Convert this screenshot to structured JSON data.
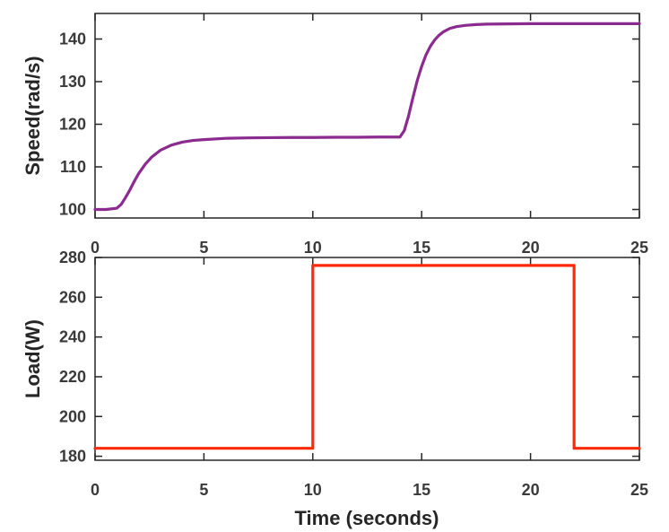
{
  "chart_data": [
    {
      "type": "line",
      "title": "",
      "xlabel": "",
      "ylabel": "Speed(rad/s)",
      "xlim": [
        0,
        25
      ],
      "ylim": [
        98,
        146
      ],
      "xticks": [
        0,
        5,
        10,
        15,
        20,
        25
      ],
      "xtick_labels": [
        "0",
        "5",
        "10",
        "15",
        "20",
        "25"
      ],
      "yticks": [
        100,
        110,
        120,
        130,
        140
      ],
      "ytick_labels": [
        "100",
        "110",
        "120",
        "130",
        "140"
      ],
      "grid": false,
      "legend": "none",
      "series": [
        {
          "color": "#8b2a8f",
          "x": [
            0,
            0.5,
            1.0,
            1.2,
            1.4,
            1.6,
            1.8,
            2.0,
            2.3,
            2.6,
            3.0,
            3.5,
            4.0,
            4.5,
            5.0,
            6.0,
            7.0,
            8.0,
            9.0,
            10.0,
            11.0,
            12.0,
            13.0,
            14.0,
            14.2,
            14.4,
            14.6,
            14.8,
            15.0,
            15.2,
            15.4,
            15.6,
            15.8,
            16.0,
            16.3,
            16.6,
            17.0,
            17.5,
            18.0,
            19.0,
            20.0,
            21.0,
            22.0,
            23.0,
            24.0,
            25.0
          ],
          "y": [
            100,
            100,
            100.3,
            101.2,
            102.8,
            104.6,
            106.6,
            108.4,
            110.6,
            112.3,
            113.9,
            115.1,
            115.8,
            116.2,
            116.4,
            116.7,
            116.8,
            116.85,
            116.9,
            116.9,
            116.95,
            116.95,
            117.0,
            117.0,
            118.5,
            122.0,
            126.3,
            130.3,
            133.6,
            136.3,
            138.3,
            139.8,
            140.9,
            141.7,
            142.5,
            142.9,
            143.2,
            143.4,
            143.5,
            143.55,
            143.6,
            143.6,
            143.6,
            143.6,
            143.6,
            143.6
          ]
        }
      ]
    },
    {
      "type": "line",
      "title": "",
      "xlabel": "Time (seconds)",
      "ylabel": "Load(W)",
      "xlim": [
        0,
        25
      ],
      "ylim": [
        178,
        280
      ],
      "xticks": [
        0,
        5,
        10,
        15,
        20,
        25
      ],
      "xtick_labels": [
        "0",
        "5",
        "10",
        "15",
        "20",
        "25"
      ],
      "yticks": [
        180,
        200,
        220,
        240,
        260,
        280
      ],
      "ytick_labels": [
        "180",
        "200",
        "220",
        "240",
        "260",
        "280"
      ],
      "grid": false,
      "legend": "none",
      "series": [
        {
          "color": "#ff2a0a",
          "x": [
            0,
            10,
            10,
            22,
            22,
            25
          ],
          "y": [
            184,
            184,
            276,
            276,
            184,
            184
          ]
        }
      ]
    }
  ]
}
